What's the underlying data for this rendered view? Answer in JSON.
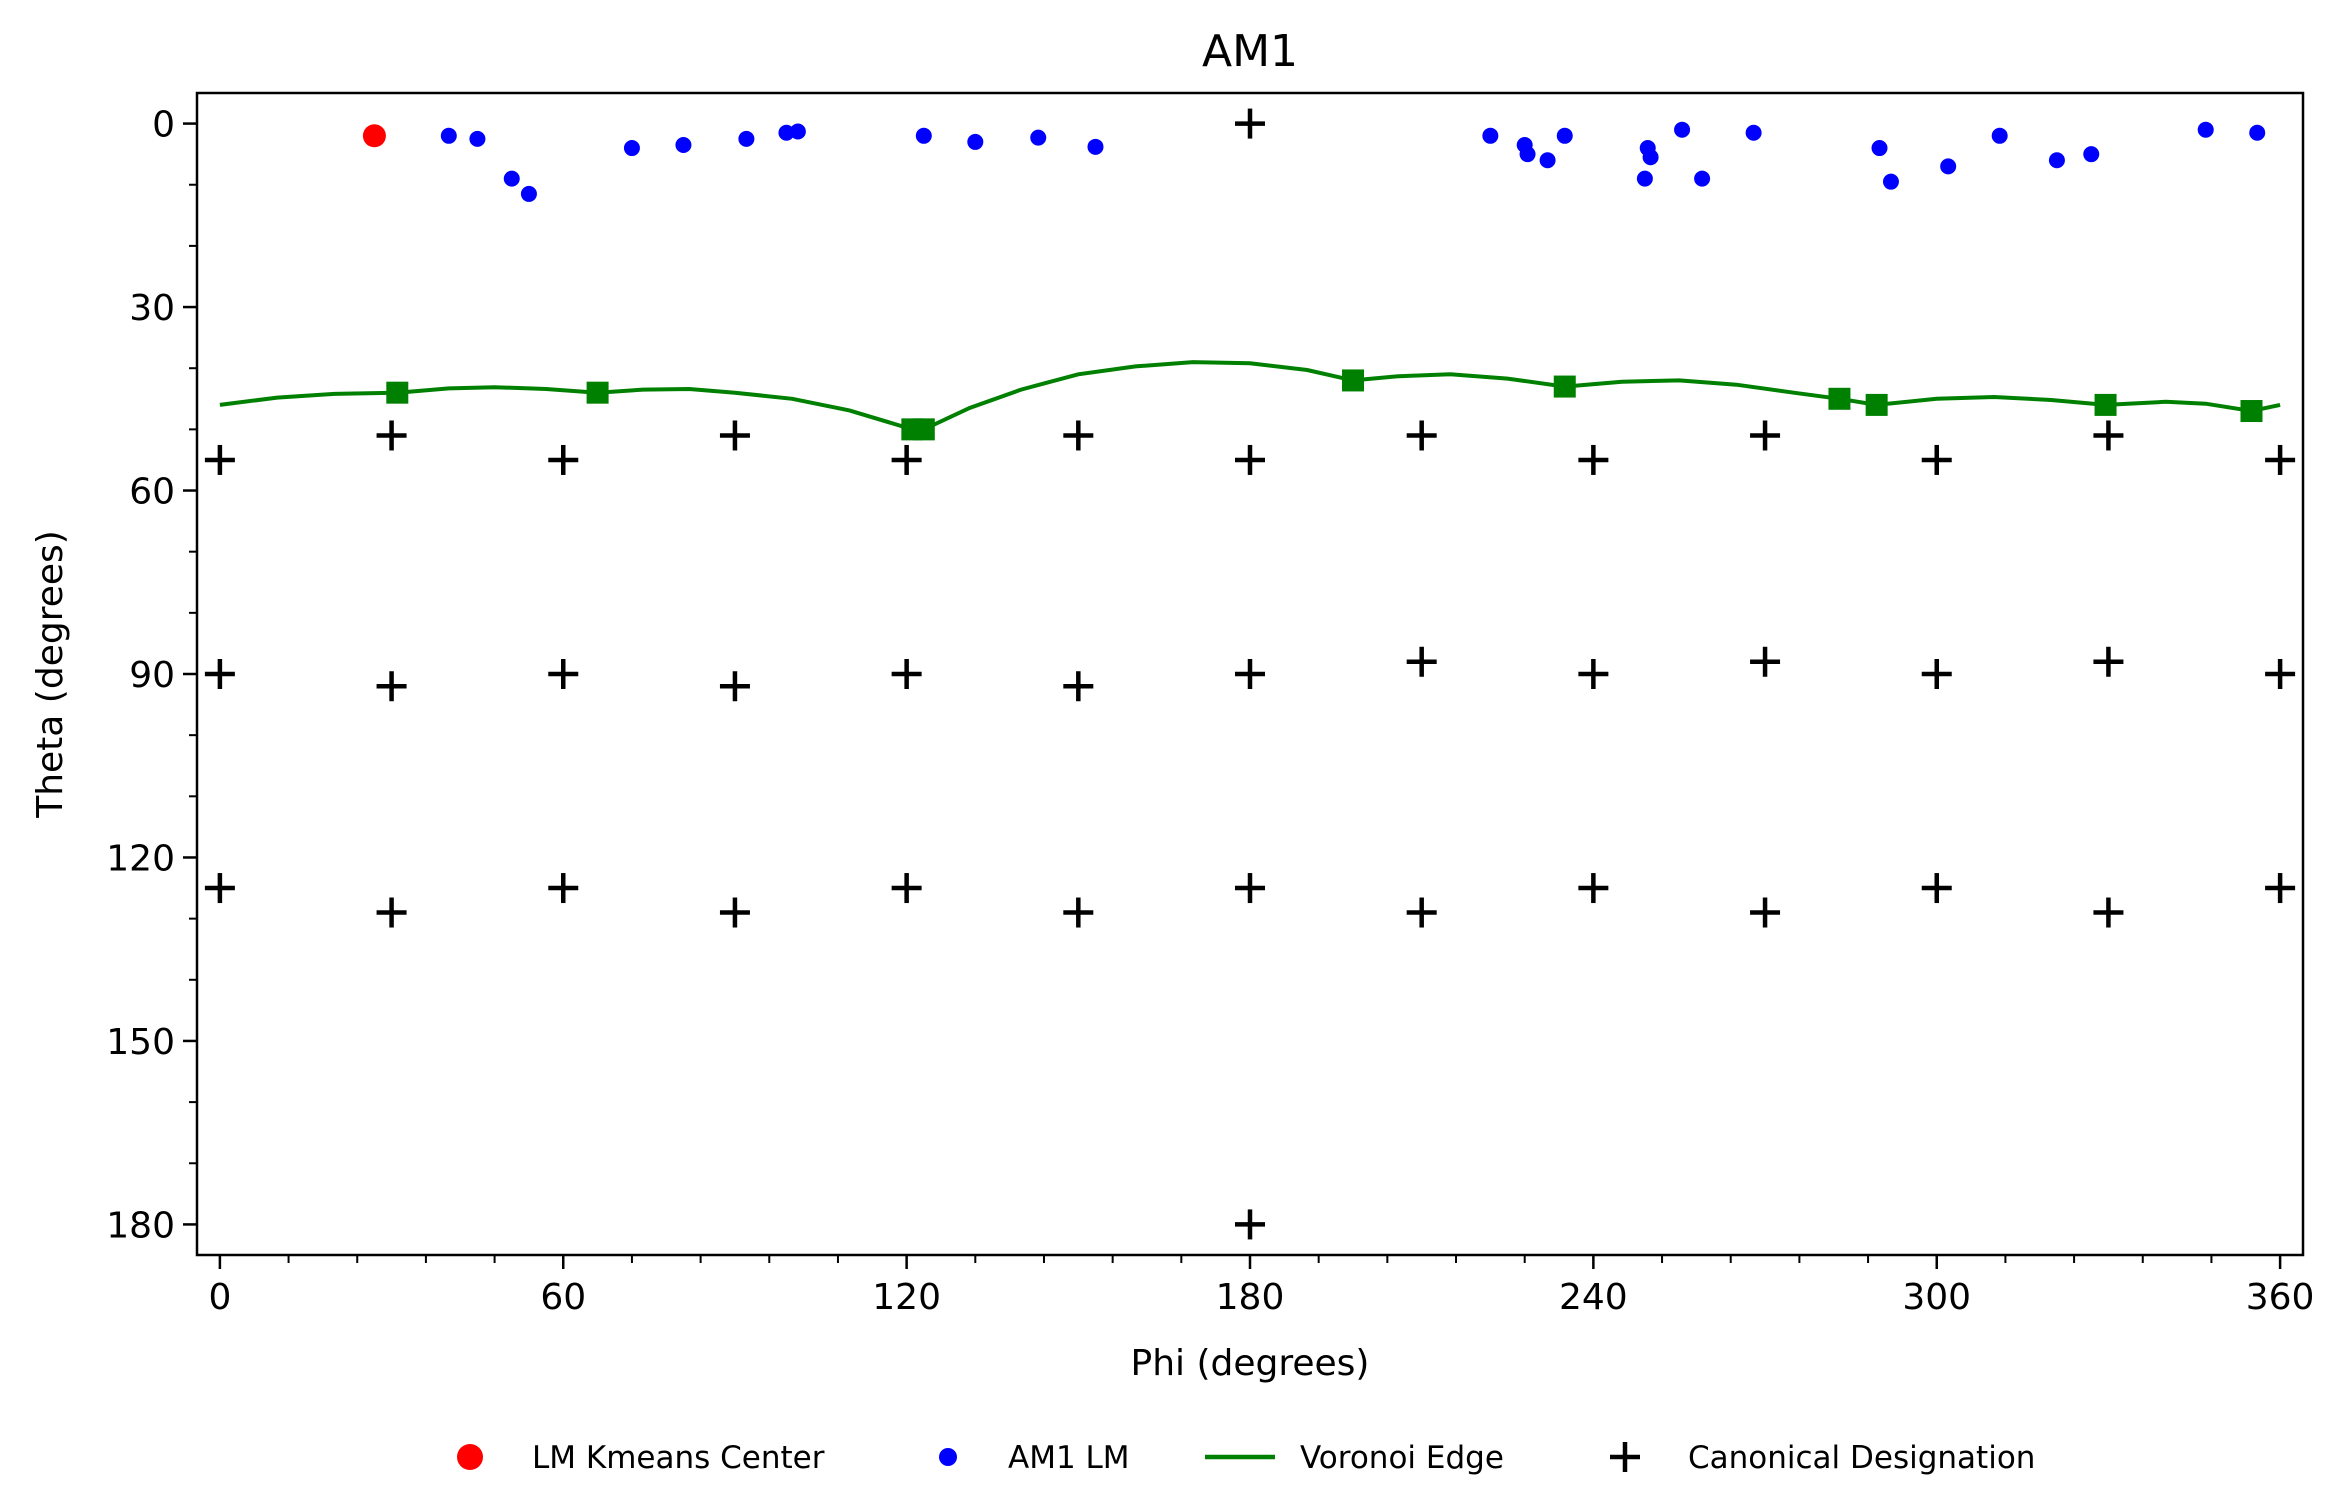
{
  "chart_data": {
    "type": "scatter",
    "title": "AM1",
    "xlabel": "Phi (degrees)",
    "ylabel": "Theta (degrees)",
    "xlim": [
      -4,
      364
    ],
    "ylim": [
      185,
      -5
    ],
    "y_inverted": true,
    "xticks": [
      0,
      60,
      120,
      180,
      240,
      300,
      360
    ],
    "yticks": [
      0,
      30,
      60,
      90,
      120,
      150,
      180
    ],
    "x_minor_step": 12,
    "y_minor_step": 10,
    "grid": false,
    "legend_placement": "bottom-center",
    "series": [
      {
        "name": "LM Kmeans Center",
        "kind": "point",
        "color": "#ff0000",
        "points": [
          [
            27,
            2
          ]
        ]
      },
      {
        "name": "AM1 LM",
        "kind": "point",
        "color": "#0000ff",
        "points": [
          [
            40,
            2
          ],
          [
            45,
            2.5
          ],
          [
            51,
            9
          ],
          [
            54,
            11.5
          ],
          [
            72,
            4
          ],
          [
            81,
            3.5
          ],
          [
            92,
            2.5
          ],
          [
            99,
            1.5
          ],
          [
            101,
            1.3
          ],
          [
            123,
            2
          ],
          [
            132,
            3
          ],
          [
            143,
            2.3
          ],
          [
            153,
            3.8
          ],
          [
            222,
            2
          ],
          [
            228,
            3.5
          ],
          [
            228.5,
            5
          ],
          [
            232,
            6
          ],
          [
            235,
            2
          ],
          [
            249,
            9
          ],
          [
            249.5,
            4
          ],
          [
            250,
            5.5
          ],
          [
            255.5,
            1
          ],
          [
            259,
            9
          ],
          [
            268,
            1.5
          ],
          [
            290,
            4
          ],
          [
            292,
            9.5
          ],
          [
            302,
            7
          ],
          [
            311,
            2
          ],
          [
            321,
            6
          ],
          [
            327,
            5
          ],
          [
            347,
            1
          ],
          [
            356,
            1.5
          ]
        ]
      },
      {
        "name": "Voronoi Edge",
        "kind": "line",
        "color": "#008000",
        "markers": [
          [
            31,
            44
          ],
          [
            66,
            44
          ],
          [
            121,
            50
          ],
          [
            123,
            50
          ],
          [
            198,
            42
          ],
          [
            235,
            43
          ],
          [
            283,
            45
          ],
          [
            289.5,
            46
          ],
          [
            329.5,
            46
          ],
          [
            355,
            47
          ]
        ],
        "curve": [
          [
            0,
            46
          ],
          [
            10,
            44.8
          ],
          [
            20,
            44.2
          ],
          [
            31,
            44
          ],
          [
            40,
            43.3
          ],
          [
            48,
            43.1
          ],
          [
            57,
            43.4
          ],
          [
            66,
            44
          ],
          [
            74,
            43.5
          ],
          [
            82,
            43.4
          ],
          [
            90,
            44
          ],
          [
            100,
            45
          ],
          [
            110,
            46.9
          ],
          [
            121,
            50
          ],
          [
            123,
            50
          ],
          [
            131,
            46.5
          ],
          [
            140,
            43.5
          ],
          [
            150,
            41
          ],
          [
            160,
            39.7
          ],
          [
            170,
            39
          ],
          [
            180,
            39.2
          ],
          [
            190,
            40.3
          ],
          [
            198,
            42
          ],
          [
            206,
            41.3
          ],
          [
            215,
            41
          ],
          [
            225,
            41.7
          ],
          [
            235,
            43
          ],
          [
            245,
            42.2
          ],
          [
            255,
            42
          ],
          [
            265,
            42.7
          ],
          [
            275,
            44
          ],
          [
            283,
            45
          ],
          [
            289.5,
            46
          ],
          [
            300,
            45
          ],
          [
            310,
            44.7
          ],
          [
            320,
            45.2
          ],
          [
            329.5,
            46
          ],
          [
            340,
            45.5
          ],
          [
            347,
            45.8
          ],
          [
            355,
            47
          ],
          [
            360,
            46
          ]
        ]
      },
      {
        "name": "Canonical Designation",
        "kind": "plus",
        "color": "#000000",
        "points": [
          [
            180,
            0
          ],
          [
            0,
            55
          ],
          [
            30,
            51
          ],
          [
            60,
            55
          ],
          [
            90,
            51
          ],
          [
            120,
            55
          ],
          [
            150,
            51
          ],
          [
            180,
            55
          ],
          [
            210,
            51
          ],
          [
            240,
            55
          ],
          [
            270,
            51
          ],
          [
            300,
            55
          ],
          [
            330,
            51
          ],
          [
            360,
            55
          ],
          [
            0,
            90
          ],
          [
            30,
            92
          ],
          [
            60,
            90
          ],
          [
            90,
            92
          ],
          [
            120,
            90
          ],
          [
            150,
            92
          ],
          [
            180,
            90
          ],
          [
            210,
            88
          ],
          [
            240,
            90
          ],
          [
            270,
            88
          ],
          [
            300,
            90
          ],
          [
            330,
            88
          ],
          [
            360,
            90
          ],
          [
            0,
            125
          ],
          [
            30,
            129
          ],
          [
            60,
            125
          ],
          [
            90,
            129
          ],
          [
            120,
            125
          ],
          [
            150,
            129
          ],
          [
            180,
            125
          ],
          [
            210,
            129
          ],
          [
            240,
            125
          ],
          [
            270,
            129
          ],
          [
            300,
            125
          ],
          [
            330,
            129
          ],
          [
            360,
            125
          ],
          [
            180,
            180
          ]
        ]
      }
    ]
  }
}
